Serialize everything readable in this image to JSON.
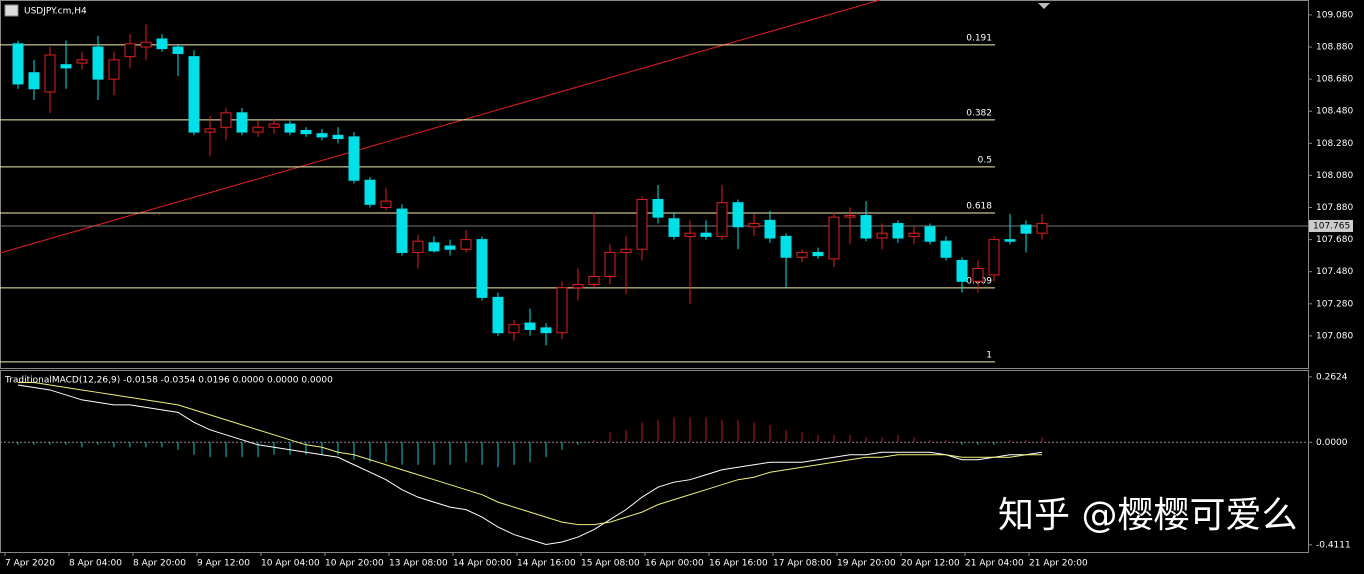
{
  "chart_data": [
    {
      "type": "candlestick",
      "title": "USDJPY.cm,H4",
      "categories": [
        "7 Apr 2020",
        null,
        null,
        null,
        "8 Apr 04:00",
        null,
        null,
        null,
        "8 Apr 20:00",
        null,
        null,
        null,
        "9 Apr 12:00",
        null,
        null,
        null,
        "10 Apr 04:00",
        null,
        null,
        null,
        "10 Apr 20:00",
        null,
        null,
        null,
        "13 Apr 08:00",
        null,
        null,
        null,
        "14 Apr 00:00",
        null,
        null,
        null,
        "14 Apr 16:00",
        null,
        null,
        null,
        "15 Apr 08:00",
        null,
        null,
        null,
        "16 Apr 00:00",
        null,
        null,
        null,
        "16 Apr 16:00",
        null,
        null,
        null,
        "17 Apr 08:00",
        null,
        null,
        null,
        "19 Apr 20:00",
        null,
        null,
        null,
        "20 Apr 12:00",
        null,
        null,
        null,
        "21 Apr 04:00",
        null,
        null,
        null,
        "21 Apr 20:00"
      ],
      "open": [
        108.9,
        108.72,
        108.6,
        108.77,
        108.78,
        108.88,
        108.68,
        108.82,
        108.88,
        108.93,
        108.88,
        108.82,
        108.35,
        108.38,
        108.47,
        108.35,
        108.38,
        108.4,
        108.36,
        108.34,
        108.33,
        108.32,
        108.05,
        107.88,
        107.87,
        107.6,
        107.66,
        107.64,
        107.62,
        107.68,
        107.32,
        107.1,
        107.16,
        107.13,
        107.1,
        107.38,
        107.4,
        107.45,
        107.6,
        107.62,
        107.93,
        107.81,
        107.7,
        107.72,
        107.7,
        107.91,
        107.76,
        107.8,
        107.7,
        107.57,
        107.6,
        107.56,
        107.82,
        107.83,
        107.69,
        107.78,
        107.7,
        107.76,
        107.67,
        107.55,
        107.42,
        107.46,
        107.68,
        107.77,
        107.72
      ],
      "high": [
        108.92,
        108.8,
        108.88,
        108.92,
        108.85,
        108.95,
        108.85,
        108.96,
        109.02,
        108.96,
        108.9,
        108.86,
        108.45,
        108.5,
        108.5,
        108.42,
        108.43,
        108.42,
        108.38,
        108.37,
        108.38,
        108.35,
        108.07,
        108.0,
        107.9,
        107.71,
        107.7,
        107.68,
        107.74,
        107.7,
        107.35,
        107.18,
        107.25,
        107.16,
        107.42,
        107.5,
        107.85,
        107.65,
        107.7,
        107.95,
        108.02,
        107.85,
        107.8,
        107.8,
        108.02,
        107.93,
        107.84,
        107.86,
        107.72,
        107.62,
        107.63,
        107.85,
        107.88,
        107.92,
        107.78,
        107.8,
        107.76,
        107.78,
        107.7,
        107.57,
        107.55,
        107.7,
        107.84,
        107.8,
        107.84
      ],
      "low": [
        108.62,
        108.55,
        108.47,
        108.62,
        108.74,
        108.55,
        108.58,
        108.75,
        108.8,
        108.85,
        108.7,
        108.33,
        108.2,
        108.3,
        108.33,
        108.32,
        108.34,
        108.33,
        108.32,
        108.3,
        108.28,
        108.03,
        107.88,
        107.86,
        107.58,
        107.5,
        107.6,
        107.58,
        107.6,
        107.3,
        107.08,
        107.05,
        107.08,
        107.02,
        107.06,
        107.3,
        107.38,
        107.4,
        107.34,
        107.55,
        107.78,
        107.68,
        107.28,
        107.68,
        107.68,
        107.62,
        107.7,
        107.66,
        107.38,
        107.54,
        107.56,
        107.51,
        107.65,
        107.67,
        107.62,
        107.66,
        107.65,
        107.65,
        107.55,
        107.35,
        107.35,
        107.42,
        107.65,
        107.6,
        107.68
      ],
      "close": [
        108.65,
        108.62,
        108.83,
        108.75,
        108.8,
        108.68,
        108.8,
        108.9,
        108.91,
        108.87,
        108.84,
        108.35,
        108.37,
        108.47,
        108.35,
        108.38,
        108.4,
        108.35,
        108.34,
        108.32,
        108.31,
        108.05,
        107.9,
        107.92,
        107.6,
        107.67,
        107.61,
        107.62,
        107.68,
        107.32,
        107.1,
        107.15,
        107.12,
        107.1,
        107.38,
        107.4,
        107.45,
        107.6,
        107.62,
        107.93,
        107.82,
        107.7,
        107.72,
        107.7,
        107.91,
        107.76,
        107.78,
        107.69,
        107.57,
        107.6,
        107.58,
        107.82,
        107.83,
        107.69,
        107.72,
        107.69,
        107.72,
        107.67,
        107.57,
        107.42,
        107.5,
        107.68,
        107.67,
        107.72,
        107.78
      ],
      "up_color": "#e02020",
      "down_color": "#00e0e8",
      "ylim": [
        106.88,
        109.173
      ],
      "yticks": [
        {
          "value": 109.08,
          "label": "109.080"
        },
        {
          "value": 108.88,
          "label": "108.880"
        },
        {
          "value": 108.68,
          "label": "108.680"
        },
        {
          "value": 108.48,
          "label": "108.480"
        },
        {
          "value": 108.28,
          "label": "108.280"
        },
        {
          "value": 108.08,
          "label": "108.080"
        },
        {
          "value": 107.88,
          "label": "107.880"
        },
        {
          "value": 107.68,
          "label": "107.680"
        },
        {
          "value": 107.48,
          "label": "107.480"
        },
        {
          "value": 107.28,
          "label": "107.280"
        },
        {
          "value": 107.08,
          "label": "107.080"
        }
      ],
      "current_price": 107.765,
      "fib_levels": [
        {
          "label": "0.191",
          "price": 108.893
        },
        {
          "label": "0.382",
          "price": 108.426
        },
        {
          "label": "0.5",
          "price": 108.133
        },
        {
          "label": "0.618",
          "price": 107.846
        },
        {
          "label": "0.809",
          "price": 107.379
        },
        {
          "label": "1",
          "price": 106.918
        }
      ]
    },
    {
      "type": "macd",
      "title": "TraditionalMACD(12,26,9) -0.0158 -0.0354 0.0196 0.0000 0.0000 0.0000",
      "ylim": [
        -0.44,
        0.29
      ],
      "yticks": [
        0.2624,
        {
          "value": 0,
          "label": "0.0000"
        },
        -0.4111
      ],
      "histogram": {
        "up_color": "#c81818",
        "down_color": "#10c8d8",
        "values": [
          -0.01,
          -0.01,
          -0.01,
          -0.01,
          -0.02,
          -0.01,
          -0.02,
          -0.02,
          -0.02,
          -0.02,
          -0.03,
          -0.05,
          -0.06,
          -0.06,
          -0.06,
          -0.06,
          -0.05,
          -0.05,
          -0.05,
          -0.05,
          -0.05,
          -0.07,
          -0.08,
          -0.08,
          -0.09,
          -0.09,
          -0.09,
          -0.09,
          -0.08,
          -0.09,
          -0.1,
          -0.09,
          -0.08,
          -0.06,
          -0.03,
          -0.01,
          0.01,
          0.04,
          0.05,
          0.08,
          0.09,
          0.1,
          0.1,
          0.1,
          0.09,
          0.09,
          0.08,
          0.07,
          0.05,
          0.04,
          0.03,
          0.03,
          0.03,
          0.02,
          0.02,
          0.03,
          0.02,
          0.01,
          0.01,
          -0.01,
          -0.01,
          -0.01,
          0.01,
          0.01,
          0.02
        ]
      },
      "series": [
        {
          "color": "#ffffff",
          "values": [
            0.23,
            0.22,
            0.21,
            0.19,
            0.17,
            0.16,
            0.15,
            0.15,
            0.14,
            0.13,
            0.12,
            0.08,
            0.05,
            0.03,
            0.01,
            -0.01,
            -0.02,
            -0.03,
            -0.04,
            -0.05,
            -0.06,
            -0.09,
            -0.12,
            -0.15,
            -0.19,
            -0.22,
            -0.24,
            -0.26,
            -0.27,
            -0.3,
            -0.34,
            -0.37,
            -0.39,
            -0.41,
            -0.4,
            -0.38,
            -0.35,
            -0.31,
            -0.27,
            -0.22,
            -0.18,
            -0.16,
            -0.15,
            -0.13,
            -0.11,
            -0.1,
            -0.09,
            -0.08,
            -0.08,
            -0.08,
            -0.07,
            -0.06,
            -0.05,
            -0.05,
            -0.04,
            -0.04,
            -0.04,
            -0.04,
            -0.05,
            -0.07,
            -0.07,
            -0.06,
            -0.05,
            -0.05,
            -0.04
          ]
        },
        {
          "color": "#f0f080",
          "values": [
            0.24,
            0.24,
            0.23,
            0.22,
            0.21,
            0.2,
            0.19,
            0.18,
            0.17,
            0.16,
            0.15,
            0.13,
            0.11,
            0.09,
            0.07,
            0.05,
            0.03,
            0.01,
            -0.01,
            -0.02,
            -0.04,
            -0.05,
            -0.07,
            -0.09,
            -0.11,
            -0.13,
            -0.15,
            -0.17,
            -0.19,
            -0.21,
            -0.24,
            -0.26,
            -0.28,
            -0.3,
            -0.32,
            -0.33,
            -0.33,
            -0.32,
            -0.3,
            -0.28,
            -0.25,
            -0.23,
            -0.21,
            -0.19,
            -0.17,
            -0.15,
            -0.14,
            -0.12,
            -0.11,
            -0.1,
            -0.09,
            -0.08,
            -0.07,
            -0.06,
            -0.06,
            -0.05,
            -0.05,
            -0.05,
            -0.05,
            -0.06,
            -0.06,
            -0.06,
            -0.06,
            -0.05,
            -0.05
          ]
        }
      ]
    }
  ],
  "watermark": "知乎 @樱樱可爱么"
}
